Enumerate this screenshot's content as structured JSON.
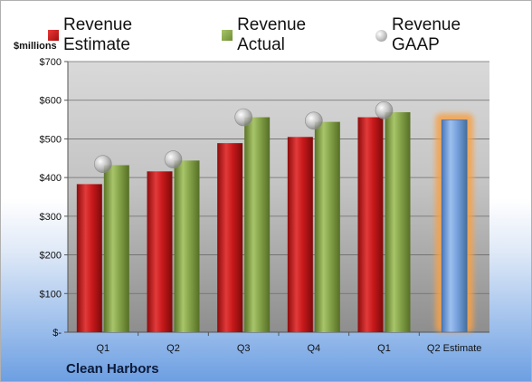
{
  "legend": {
    "estimate": "Revenue Estimate",
    "actual": "Revenue Actual",
    "gaap": "Revenue GAAP"
  },
  "unit_label": "$millions",
  "company": "Clean Harbors",
  "chart_data": {
    "type": "bar",
    "categories": [
      "Q1",
      "Q2",
      "Q3",
      "Q4",
      "Q1",
      "Q2 Estimate"
    ],
    "series": [
      {
        "name": "Revenue Estimate",
        "values": [
          383,
          416,
          489,
          505,
          556,
          null
        ]
      },
      {
        "name": "Revenue Actual",
        "values": [
          432,
          444,
          556,
          544,
          569,
          549
        ]
      },
      {
        "name": "Revenue GAAP",
        "type": "scatter",
        "values": [
          435,
          447,
          556,
          547,
          574,
          null
        ]
      }
    ],
    "ylim": [
      0,
      700
    ],
    "yticks": [
      0,
      100,
      200,
      300,
      400,
      500,
      600,
      700
    ],
    "ytick_labels": [
      "$-",
      "$100",
      "$200",
      "$300",
      "$400",
      "$500",
      "$600",
      "$700"
    ],
    "grid": true,
    "legend_position": "top",
    "colors": {
      "estimate": "#c0181b",
      "actual": "#7f9f45",
      "forecast": "#6d9ad6",
      "gaap": "#bdbdbd",
      "highlight": "#f6a24a"
    }
  }
}
